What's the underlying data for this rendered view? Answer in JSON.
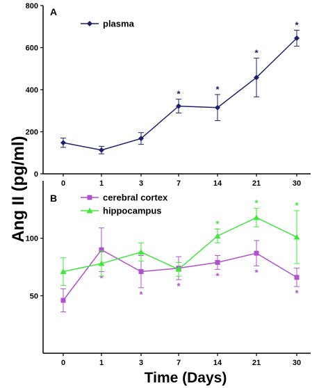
{
  "figure": {
    "ylabel": "Ang II (pg/ml)",
    "xlabel": "Time (Days)",
    "significance_marker": "*"
  },
  "chart_data": [
    {
      "type": "line",
      "panel_label": "A",
      "categories": [
        "0",
        "1",
        "3",
        "7",
        "14",
        "21",
        "30"
      ],
      "ylim": [
        0,
        800
      ],
      "yticks": [
        0,
        200,
        400,
        600,
        800
      ],
      "legend_position": "top-left",
      "series": [
        {
          "name": "plasma",
          "color": "#1b1f6e",
          "marker": "diamond",
          "values": [
            148,
            113,
            168,
            322,
            315,
            458,
            645
          ],
          "errors": [
            22,
            18,
            28,
            33,
            62,
            92,
            38
          ],
          "significant": [
            false,
            false,
            false,
            true,
            true,
            true,
            true
          ]
        }
      ]
    },
    {
      "type": "line",
      "panel_label": "B",
      "categories": [
        "0",
        "1",
        "3",
        "7",
        "14",
        "21",
        "30"
      ],
      "ylim": [
        0,
        150
      ],
      "yticks": [
        50,
        100
      ],
      "legend_position": "top-left",
      "series": [
        {
          "name": "cerebral cortex",
          "color": "#b04fcf",
          "marker": "square",
          "values": [
            46,
            90,
            71,
            74,
            79,
            87,
            66
          ],
          "errors": [
            10,
            19,
            14,
            10,
            6,
            11,
            8
          ],
          "significant": [
            false,
            true,
            true,
            true,
            true,
            true,
            true
          ]
        },
        {
          "name": "hippocampus",
          "color": "#3ee83a",
          "marker": "triangle",
          "values": [
            71,
            78,
            88,
            73,
            102,
            118,
            101
          ],
          "errors": [
            12,
            11,
            8,
            6,
            6,
            8,
            23
          ],
          "significant": [
            false,
            false,
            false,
            false,
            true,
            true,
            true
          ]
        }
      ]
    }
  ]
}
